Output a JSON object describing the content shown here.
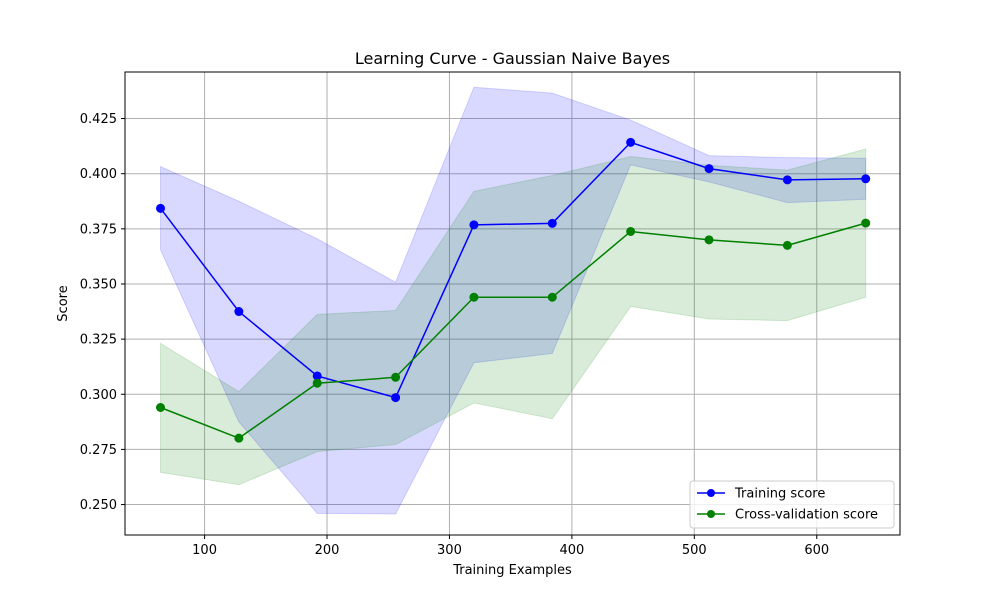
{
  "chart_data": {
    "type": "line",
    "title": "Learning Curve - Gaussian Naive Bayes",
    "xlabel": "Training Examples",
    "ylabel": "Score",
    "xlim": [
      35,
      668
    ],
    "ylim": [
      0.2362,
      0.4461
    ],
    "xticks": [
      100,
      200,
      300,
      400,
      500,
      600
    ],
    "yticks": [
      0.25,
      0.275,
      0.3,
      0.325,
      0.35,
      0.375,
      0.4,
      0.425
    ],
    "grid": true,
    "legend": "lower-right",
    "x": [
      64,
      128,
      192,
      256,
      320,
      384,
      448,
      512,
      576,
      640
    ],
    "series": [
      {
        "name": "Training score",
        "color": "#0000ff",
        "values": [
          0.3843,
          0.3375,
          0.3083,
          0.2985,
          0.3768,
          0.3775,
          0.4142,
          0.4023,
          0.3972,
          0.3977
        ],
        "band_upper": [
          0.4032,
          0.3875,
          0.3705,
          0.3508,
          0.4392,
          0.4365,
          0.4243,
          0.4082,
          0.4073,
          0.407
        ],
        "band_lower": [
          0.3655,
          0.2875,
          0.246,
          0.2457,
          0.3143,
          0.3185,
          0.404,
          0.3963,
          0.3869,
          0.3884
        ],
        "band_color": "#0000ff"
      },
      {
        "name": "Cross-validation score",
        "color": "#008000",
        "values": [
          0.294,
          0.2801,
          0.305,
          0.3077,
          0.344,
          0.344,
          0.3738,
          0.37,
          0.3675,
          0.3776
        ],
        "band_upper": [
          0.3231,
          0.3012,
          0.3362,
          0.338,
          0.392,
          0.3992,
          0.4078,
          0.4038,
          0.4016,
          0.4112
        ],
        "band_lower": [
          0.2646,
          0.259,
          0.274,
          0.2772,
          0.2961,
          0.2889,
          0.3398,
          0.3341,
          0.3334,
          0.344
        ],
        "band_color": "#008000"
      }
    ]
  }
}
